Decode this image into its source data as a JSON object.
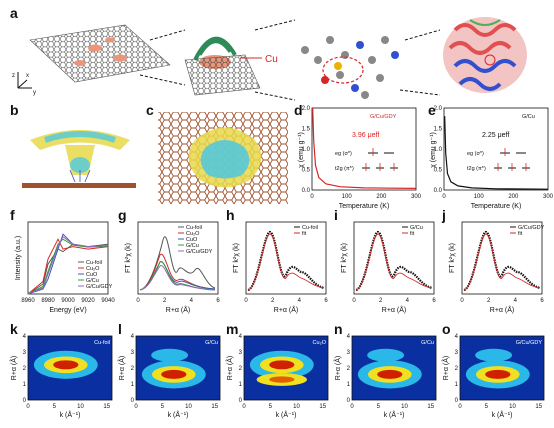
{
  "panels": [
    "a",
    "b",
    "c",
    "d",
    "e",
    "f",
    "g",
    "h",
    "i",
    "j",
    "k",
    "l",
    "m",
    "n",
    "o"
  ],
  "a": {
    "cu_label": "Cu",
    "axis_z": "z",
    "axis_x": "x",
    "axis_y": "y"
  },
  "d": {
    "ylabel": "χ (emu g⁻¹)",
    "xlabel": "Temperature (K)",
    "legend": "G/Cu/GDY",
    "moment": "3.96 μeff",
    "eg": "eg (σ*)",
    "t2g": "t2g (π*)",
    "xticks": [
      "0",
      "100",
      "200",
      "300"
    ],
    "yticks": [
      "0.0",
      "0.5",
      "1.0",
      "1.5",
      "2.0"
    ]
  },
  "e": {
    "ylabel": "χ (emu g⁻¹)",
    "xlabel": "Temperature (K)",
    "legend": "G/Cu",
    "moment": "2.25 μeff",
    "eg": "eg (σ*)",
    "t2g": "t2g (π*)",
    "xticks": [
      "0",
      "100",
      "200",
      "300"
    ],
    "yticks": [
      "0.0",
      "0.5",
      "1.0",
      "1.5",
      "2.0"
    ]
  },
  "f": {
    "ylabel": "Intensity (a.u.)",
    "xlabel": "Energy (eV)",
    "xticks": [
      "8960",
      "8980",
      "9000",
      "9020",
      "9040"
    ],
    "legend": [
      "Cu-foil",
      "Cu₂O",
      "CuO",
      "G/Cu",
      "G/Cu/GDY"
    ]
  },
  "g": {
    "ylabel": "FT k²χ (k)",
    "xlabel": "R+α (Å)",
    "xticks": [
      "0",
      "2",
      "4",
      "6"
    ],
    "legend": [
      "Cu-foil",
      "Cu₂O",
      "CuO",
      "G/Cu",
      "G/Cu/GDY"
    ]
  },
  "h": {
    "ylabel": "FT k²χ (k)",
    "xlabel": "R+α (Å)",
    "xticks": [
      "0",
      "2",
      "4",
      "6"
    ],
    "legend": [
      "Cu-foil",
      "fit"
    ]
  },
  "i": {
    "ylabel": "FT k²χ (k)",
    "xlabel": "R+α (Å)",
    "xticks": [
      "0",
      "2",
      "4",
      "6"
    ],
    "legend": [
      "G/Cu",
      "fit"
    ]
  },
  "j": {
    "ylabel": "FT k²χ (k)",
    "xlabel": "R+α (Å)",
    "xticks": [
      "0",
      "2",
      "4",
      "6"
    ],
    "legend": [
      "G/Cu/GDY",
      "fit"
    ]
  },
  "wt": {
    "ylabel": "R+α (Å)",
    "xlabel": "k (Å⁻¹)",
    "xticks": [
      "0",
      "5",
      "10",
      "15"
    ],
    "yticks": [
      "0",
      "1",
      "2",
      "3",
      "4"
    ],
    "labels": [
      "Cu-foil",
      "G/Cu",
      "Cu₂O",
      "G/Cu",
      "G/Cu/GDY"
    ]
  },
  "colors": {
    "red": "#d62728",
    "blue": "#2f5fb3",
    "gray": "#555555"
  },
  "chart_data": [
    {
      "panel": "d",
      "type": "line",
      "series": [
        {
          "name": "G/Cu/GDY",
          "x": [
            2,
            5,
            10,
            20,
            40,
            80,
            150,
            300
          ],
          "y": [
            2.0,
            1.2,
            0.6,
            0.3,
            0.15,
            0.08,
            0.05,
            0.04
          ]
        }
      ],
      "xlim": [
        0,
        300
      ],
      "ylim": [
        0,
        2.0
      ]
    },
    {
      "panel": "e",
      "type": "line",
      "series": [
        {
          "name": "G/Cu",
          "x": [
            2,
            5,
            10,
            20,
            40,
            80,
            150,
            300
          ],
          "y": [
            1.8,
            0.9,
            0.4,
            0.2,
            0.1,
            0.05,
            0.03,
            0.02
          ]
        }
      ],
      "xlim": [
        0,
        300
      ],
      "ylim": [
        0,
        2.0
      ]
    },
    {
      "panel": "f",
      "type": "line",
      "xlim": [
        8960,
        9040
      ],
      "series": [
        {
          "name": "Cu-foil",
          "x": [
            8960,
            8975,
            8980,
            8990,
            8995,
            9005,
            9020,
            9040
          ],
          "y": [
            0.0,
            0.2,
            0.6,
            0.9,
            0.85,
            1.0,
            0.95,
            1.0
          ]
        },
        {
          "name": "Cu₂O",
          "x": [
            8960,
            8975,
            8980,
            8990,
            8995,
            9005,
            9020,
            9040
          ],
          "y": [
            0.0,
            0.25,
            0.7,
            1.1,
            0.9,
            0.95,
            0.9,
            0.95
          ]
        },
        {
          "name": "CuO",
          "x": [
            8960,
            8975,
            8980,
            8990,
            8995,
            9005,
            9020,
            9040
          ],
          "y": [
            0.0,
            0.1,
            0.3,
            0.9,
            1.2,
            1.0,
            0.95,
            0.97
          ]
        },
        {
          "name": "G/Cu",
          "x": [
            8960,
            8975,
            8980,
            8990,
            8995,
            9005,
            9020,
            9040
          ],
          "y": [
            0.0,
            0.15,
            0.45,
            1.0,
            1.1,
            0.98,
            0.94,
            0.96
          ]
        },
        {
          "name": "G/Cu/GDY",
          "x": [
            8960,
            8975,
            8980,
            8990,
            8995,
            9005,
            9020,
            9040
          ],
          "y": [
            0.0,
            0.12,
            0.4,
            0.95,
            1.15,
            1.0,
            0.95,
            0.97
          ]
        }
      ]
    }
  ]
}
